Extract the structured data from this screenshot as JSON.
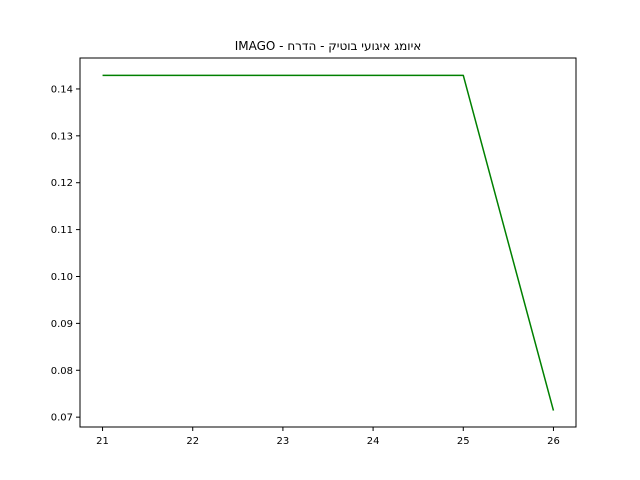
{
  "chart_data": {
    "type": "line",
    "title": "IMAGO - איומג איגועי בוטיק - הדרח",
    "xlabel": "",
    "ylabel": "",
    "xlim": [
      20.75,
      26.25
    ],
    "ylim": [
      0.0679,
      0.1466
    ],
    "x_ticks": [
      "21",
      "22",
      "23",
      "24",
      "25",
      "26"
    ],
    "y_ticks": [
      "0.07",
      "0.08",
      "0.09",
      "0.10",
      "0.11",
      "0.12",
      "0.13",
      "0.14"
    ],
    "grid": false,
    "series": [
      {
        "color": "#008000",
        "x": [
          21,
          22,
          23,
          24,
          25,
          26
        ],
        "y": [
          0.1429,
          0.1429,
          0.1429,
          0.1429,
          0.1429,
          0.0714
        ]
      }
    ]
  }
}
